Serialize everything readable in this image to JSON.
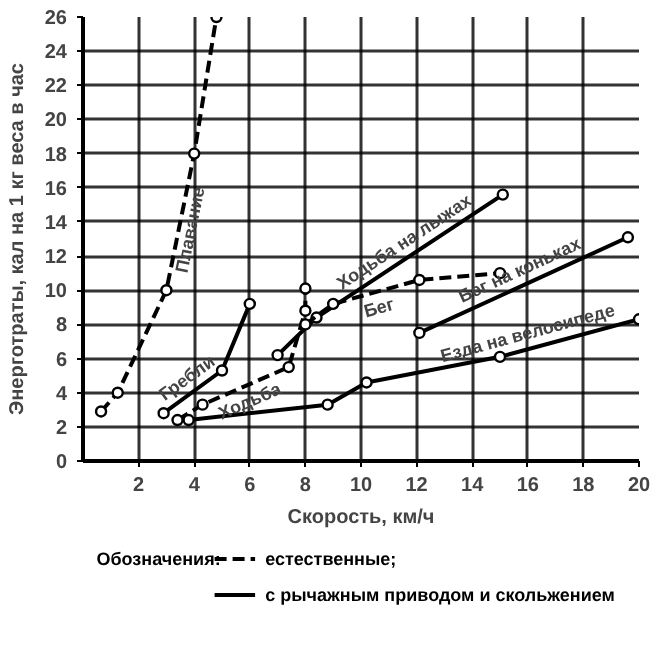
{
  "chart_data": {
    "type": "line",
    "xlabel": "Скорость, км/ч",
    "ylabel": "Энерготраты, кал на 1 кг веса в час",
    "legend_title": "Обозначения:",
    "legend": "bottom",
    "annotations": [
      "естественные;",
      "с рычажным приводом и скольжением"
    ],
    "xlim": [
      0,
      20
    ],
    "ylim": [
      0,
      26
    ],
    "xticks": [
      2,
      4,
      6,
      8,
      10,
      12,
      14,
      16,
      18,
      20
    ],
    "yticks": [
      0,
      2,
      4,
      6,
      8,
      10,
      12,
      14,
      16,
      18,
      20,
      22,
      24,
      26
    ],
    "grid": true,
    "marker": "circle",
    "series": [
      {
        "name": "Плавание",
        "color": "#000000",
        "line_style": "dashed",
        "x": [
          0.65,
          1.25,
          3.0,
          4.0,
          4.8
        ],
        "values": [
          2.9,
          4.0,
          10.0,
          18.0,
          26.0
        ]
      },
      {
        "name": "Гребли",
        "color": "#000000",
        "line_style": "solid",
        "x": [
          2.9,
          5.0,
          6.0
        ],
        "values": [
          2.8,
          5.3,
          9.2
        ]
      },
      {
        "name": "Ходьба",
        "color": "#000000",
        "line_style": "dashed",
        "x": [
          3.4,
          4.3,
          7.4,
          8.0,
          8.0
        ],
        "values": [
          2.4,
          3.3,
          5.5,
          8.8,
          10.1
        ]
      },
      {
        "name": "Ходьба на лыжах",
        "color": "#000000",
        "line_style": "solid",
        "x": [
          7.0,
          8.4,
          15.1
        ],
        "values": [
          6.2,
          8.4,
          15.6
        ]
      },
      {
        "name": "Бег",
        "color": "#000000",
        "line_style": "dashed",
        "x": [
          8.0,
          9.0,
          12.1,
          15.0
        ],
        "values": [
          8.0,
          9.2,
          10.6,
          11.0
        ]
      },
      {
        "name": "Бег на коньках",
        "color": "#000000",
        "line_style": "solid",
        "x": [
          12.1,
          19.6
        ],
        "values": [
          7.5,
          13.1
        ]
      },
      {
        "name": "Езда на велосипеде",
        "color": "#000000",
        "line_style": "solid",
        "x": [
          3.8,
          8.8,
          10.2,
          15.0,
          20.0
        ],
        "values": [
          2.4,
          3.3,
          4.6,
          6.1,
          8.3
        ]
      }
    ]
  }
}
